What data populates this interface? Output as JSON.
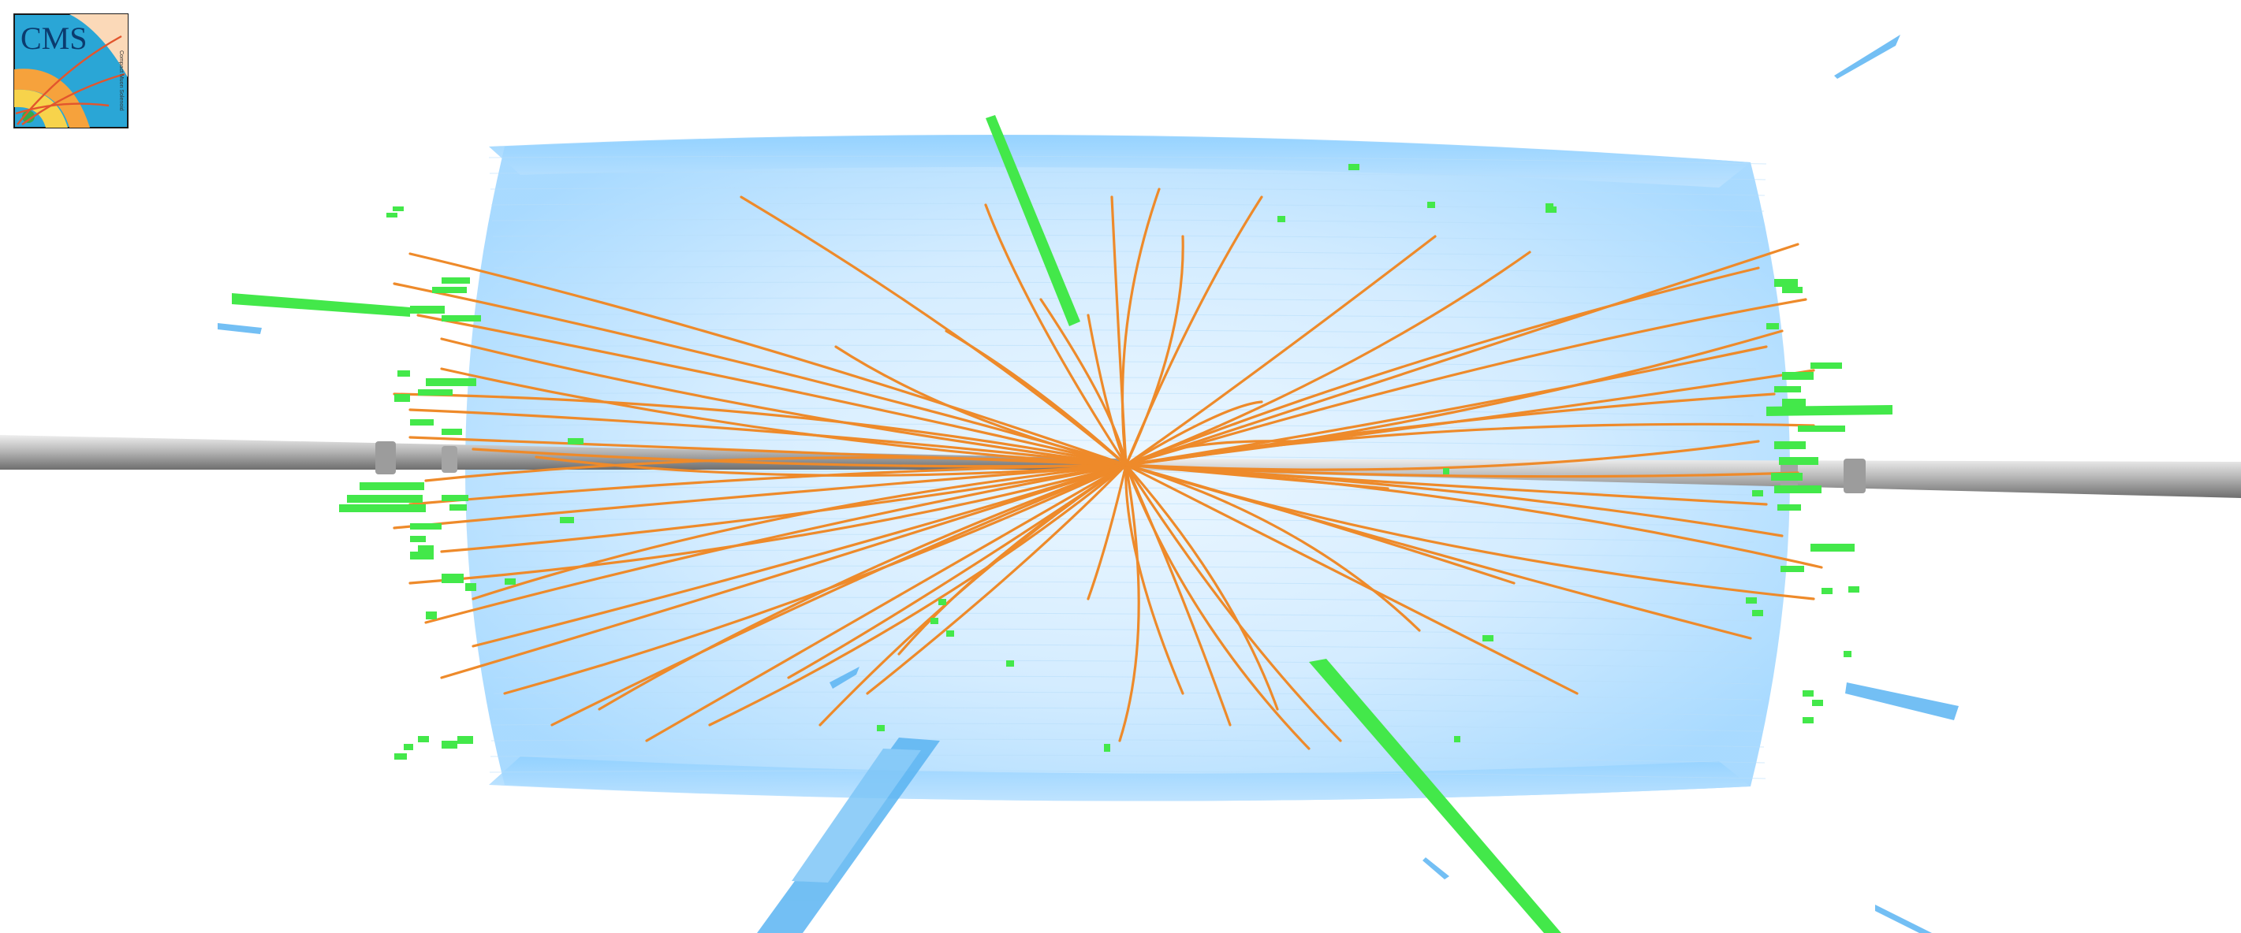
{
  "logo": {
    "text": "CMS",
    "subtext": "Compact Muon Solenoid"
  },
  "colors": {
    "background": "#ffffff",
    "tracker_barrel": "#8fd0ff",
    "track": "#ee8a2a",
    "ecal_hit": "#43e84a",
    "hcal_hit": "#5ab4f2",
    "beam_pipe": "#b9b9b9",
    "logo_blue": "#2aa6d6",
    "logo_orange": "#f6a23c",
    "logo_yellow": "#f7d34b",
    "logo_green": "#3aa84a"
  },
  "icons": [
    "cms-logo-icon"
  ]
}
